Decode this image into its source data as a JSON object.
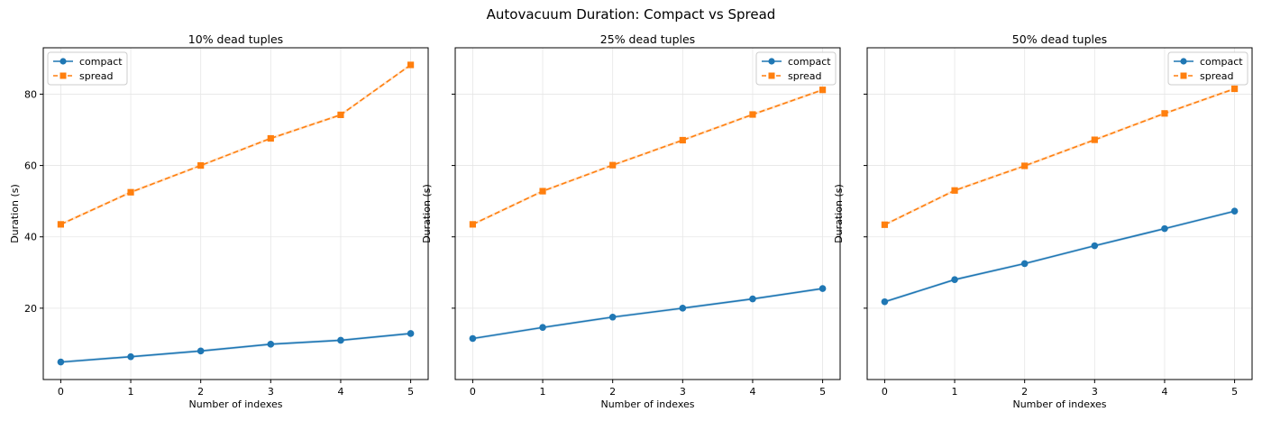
{
  "figure": {
    "title": "Autovacuum Duration: Compact vs Spread"
  },
  "colors": {
    "compact": "#1f77b4",
    "spread": "#ff7f0e",
    "grid": "#e6e6e6",
    "axis": "#000000"
  },
  "chart_data": [
    {
      "type": "line",
      "title": "10% dead tuples",
      "xlabel": "Number of indexes",
      "ylabel": "Duration (s)",
      "x": [
        0,
        1,
        2,
        3,
        4,
        5
      ],
      "xlim": [
        -0.25,
        5.25
      ],
      "ylim": [
        0,
        93
      ],
      "yticks": [
        20,
        40,
        60,
        80
      ],
      "grid": true,
      "legend": "top-left",
      "series": [
        {
          "name": "compact",
          "marker": "circle",
          "linestyle": "solid",
          "values": [
            4.9,
            6.4,
            8.0,
            9.9,
            11.0,
            12.9
          ]
        },
        {
          "name": "spread",
          "marker": "square",
          "linestyle": "dashed",
          "values": [
            43.5,
            52.5,
            60.0,
            67.6,
            74.2,
            88.2
          ]
        }
      ]
    },
    {
      "type": "line",
      "title": "25% dead tuples",
      "xlabel": "Number of indexes",
      "ylabel": "Duration (s)",
      "x": [
        0,
        1,
        2,
        3,
        4,
        5
      ],
      "xlim": [
        -0.25,
        5.25
      ],
      "ylim": [
        0,
        93
      ],
      "yticks": [
        20,
        40,
        60,
        80
      ],
      "grid": true,
      "legend": "top-right",
      "series": [
        {
          "name": "compact",
          "marker": "circle",
          "linestyle": "solid",
          "values": [
            11.5,
            14.6,
            17.5,
            20.0,
            22.6,
            25.5
          ]
        },
        {
          "name": "spread",
          "marker": "square",
          "linestyle": "dashed",
          "values": [
            43.5,
            52.8,
            60.1,
            67.1,
            74.3,
            81.2
          ]
        }
      ]
    },
    {
      "type": "line",
      "title": "50% dead tuples",
      "xlabel": "Number of indexes",
      "ylabel": "Duration (s)",
      "x": [
        0,
        1,
        2,
        3,
        4,
        5
      ],
      "xlim": [
        -0.25,
        5.25
      ],
      "ylim": [
        0,
        93
      ],
      "yticks": [
        20,
        40,
        60,
        80
      ],
      "grid": true,
      "legend": "top-right",
      "series": [
        {
          "name": "compact",
          "marker": "circle",
          "linestyle": "solid",
          "values": [
            21.8,
            28.0,
            32.5,
            37.5,
            42.3,
            47.2
          ]
        },
        {
          "name": "spread",
          "marker": "square",
          "linestyle": "dashed",
          "values": [
            43.4,
            53.0,
            59.9,
            67.2,
            74.6,
            81.5
          ]
        }
      ]
    }
  ]
}
